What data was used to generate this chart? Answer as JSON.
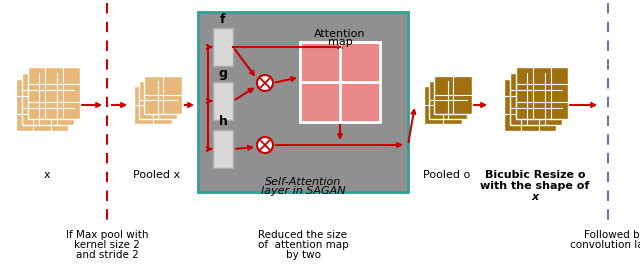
{
  "bg_color": "#ffffff",
  "tan_color": "#E8B87A",
  "tan_dark": "#A07010",
  "gray_box_color": "#909090",
  "gray_box_border": "#30A098",
  "white_rect_color": "#D8D8D8",
  "attn_map_color": "#E88888",
  "red_dashed": "#CC0000",
  "blue_dashed": "#7070BB",
  "arrow_color": "#CC0000",
  "labels": {
    "x": "x",
    "pooled_x": "Pooled x",
    "pooled_o": "Pooled o",
    "bicubic_line1": "Bicubic Resize o",
    "bicubic_line2": "with the shape of",
    "bicubic_line3": "x",
    "self_attn_line1": "Self-Attention",
    "self_attn_line2": "layer in SAGAN",
    "attn_map_line1": "Attention",
    "attn_map_line2": "map",
    "f": "f",
    "g": "g",
    "h": "h",
    "note1_line1": "If Max pool with",
    "note1_line2": "kernel size 2",
    "note1_line3": "and stride 2",
    "note2_line1": "Reduced the size",
    "note2_line2": "of  attention map",
    "note2_line3": "by two",
    "note3_line1": "Followed by",
    "note3_line2": "convolution layer"
  },
  "figsize": [
    6.4,
    2.8
  ],
  "dpi": 100
}
